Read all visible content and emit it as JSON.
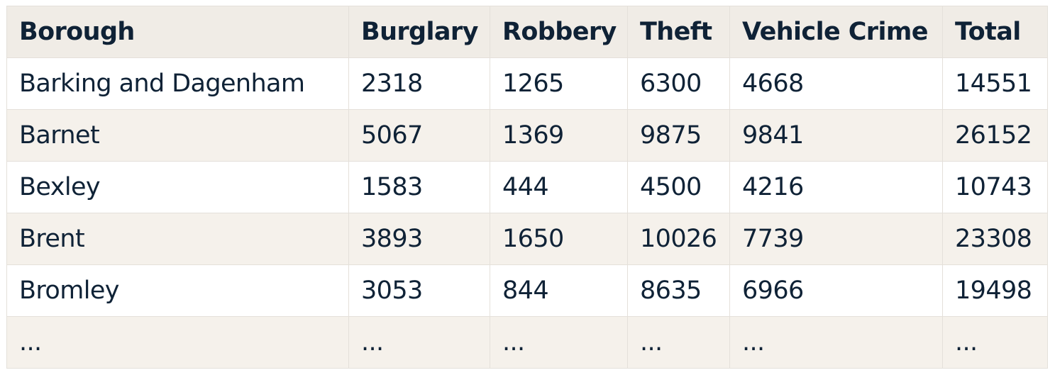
{
  "table": {
    "columns": [
      "Borough",
      "Burglary",
      "Robbery",
      "Theft",
      "Vehicle Crime",
      "Total"
    ],
    "rows": [
      [
        "Barking and Dagenham",
        "2318",
        "1265",
        "6300",
        "4668",
        "14551"
      ],
      [
        "Barnet",
        "5067",
        "1369",
        "9875",
        "9841",
        "26152"
      ],
      [
        "Bexley",
        "1583",
        "444",
        "4500",
        "4216",
        "10743"
      ],
      [
        "Brent",
        "3893",
        "1650",
        "10026",
        "7739",
        "23308"
      ],
      [
        "Bromley",
        "3053",
        "844",
        "8635",
        "6966",
        "19498"
      ],
      [
        "...",
        "...",
        "...",
        "...",
        "...",
        "..."
      ]
    ]
  }
}
